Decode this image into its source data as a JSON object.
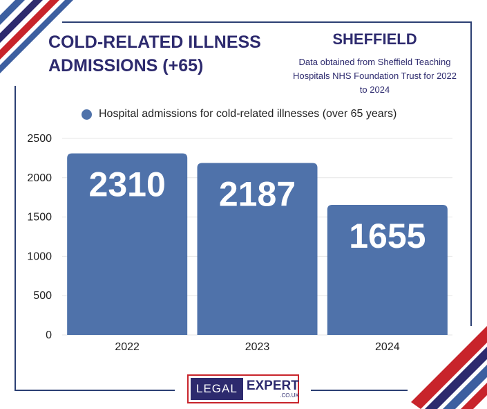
{
  "header": {
    "title": "COLD-RELATED ILLNESS ADMISSIONS (+65)",
    "city": "SHEFFIELD",
    "source": "Data obtained from Sheffield Teaching Hospitals NHS Foundation Trust for 2022 to 2024"
  },
  "logo": {
    "left": "LEGAL",
    "right": "EXPERT",
    "domain": ".CO.UK"
  },
  "colors": {
    "bar": "#4f72aa",
    "navy": "#2d2a6e",
    "red": "#c8242b",
    "blue": "#3d5fa0"
  },
  "chart_data": {
    "type": "bar",
    "title": "",
    "categories": [
      "2022",
      "2023",
      "2024"
    ],
    "series": [
      {
        "name": "Hospital admissions for cold-related illnesses (over 65 years)",
        "values": [
          2310,
          2187,
          1655
        ]
      }
    ],
    "ylim": [
      0,
      2500
    ],
    "yticks": [
      0,
      500,
      1000,
      1500,
      2000,
      2500
    ],
    "xlabel": "",
    "ylabel": "",
    "grid": true,
    "legend_position": "top"
  }
}
